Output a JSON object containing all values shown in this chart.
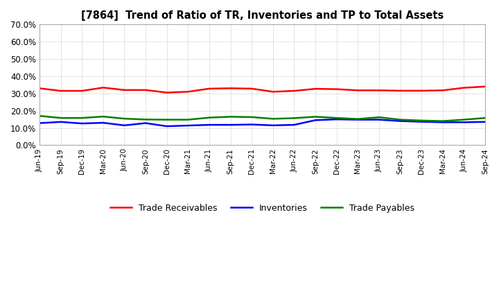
{
  "title": "[7864]  Trend of Ratio of TR, Inventories and TP to Total Assets",
  "x_labels": [
    "Jun-19",
    "Sep-19",
    "Dec-19",
    "Mar-20",
    "Jun-20",
    "Sep-20",
    "Dec-20",
    "Mar-21",
    "Jun-21",
    "Sep-21",
    "Dec-21",
    "Mar-22",
    "Jun-22",
    "Sep-22",
    "Dec-22",
    "Mar-23",
    "Jun-23",
    "Sep-23",
    "Dec-23",
    "Mar-24",
    "Jun-24",
    "Sep-24"
  ],
  "trade_receivables": [
    0.33,
    0.315,
    0.315,
    0.334,
    0.32,
    0.32,
    0.305,
    0.31,
    0.328,
    0.33,
    0.328,
    0.31,
    0.315,
    0.327,
    0.325,
    0.318,
    0.318,
    0.316,
    0.316,
    0.318,
    0.333,
    0.34
  ],
  "inventories": [
    0.128,
    0.135,
    0.126,
    0.13,
    0.115,
    0.128,
    0.11,
    0.114,
    0.118,
    0.118,
    0.12,
    0.115,
    0.118,
    0.145,
    0.15,
    0.148,
    0.148,
    0.14,
    0.136,
    0.133,
    0.133,
    0.135
  ],
  "trade_payables": [
    0.17,
    0.158,
    0.158,
    0.166,
    0.154,
    0.149,
    0.148,
    0.148,
    0.16,
    0.165,
    0.163,
    0.153,
    0.157,
    0.165,
    0.158,
    0.152,
    0.162,
    0.148,
    0.143,
    0.14,
    0.148,
    0.158
  ],
  "color_tr": "#FF0000",
  "color_inv": "#0000FF",
  "color_tp": "#008000",
  "ylim": [
    0.0,
    0.7
  ],
  "yticks": [
    0.0,
    0.1,
    0.2,
    0.3,
    0.4,
    0.5,
    0.6,
    0.7
  ],
  "legend_labels": [
    "Trade Receivables",
    "Inventories",
    "Trade Payables"
  ],
  "background_color": "#FFFFFF",
  "grid_color": "#aaaaaa",
  "linewidth": 1.8
}
